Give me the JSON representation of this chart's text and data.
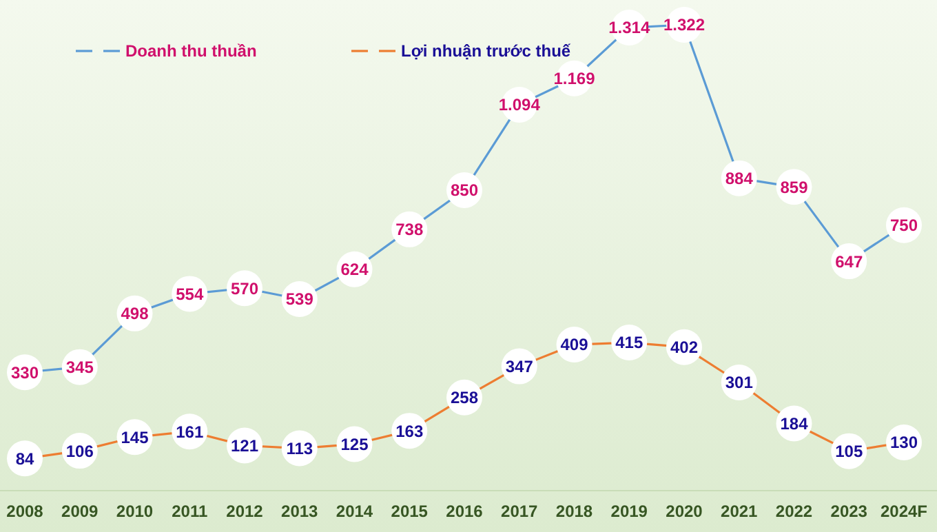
{
  "chart_data": {
    "type": "line",
    "categories": [
      "2008",
      "2009",
      "2010",
      "2011",
      "2012",
      "2013",
      "2014",
      "2015",
      "2016",
      "2017",
      "2018",
      "2019",
      "2020",
      "2021",
      "2022",
      "2023",
      "2024F"
    ],
    "series": [
      {
        "name": "Doanh thu thuần",
        "color": "#5b9bd5",
        "values": [
          330,
          345,
          498,
          554,
          570,
          539,
          624,
          738,
          850,
          1094,
          1169,
          1314,
          1322,
          884,
          859,
          647,
          750
        ],
        "value_labels": [
          "330",
          "345",
          "498",
          "554",
          "570",
          "539",
          "624",
          "738",
          "850",
          "1.094",
          "1.169",
          "1.314",
          "1.322",
          "884",
          "859",
          "647",
          "750"
        ]
      },
      {
        "name": "Lợi nhuận trước thuế",
        "color": "#ed7d31",
        "values": [
          84,
          106,
          145,
          161,
          121,
          113,
          125,
          163,
          258,
          347,
          409,
          415,
          402,
          301,
          184,
          105,
          130
        ],
        "value_labels": [
          "84",
          "106",
          "145",
          "161",
          "121",
          "113",
          "125",
          "163",
          "258",
          "347",
          "409",
          "415",
          "402",
          "301",
          "184",
          "105",
          "130"
        ]
      }
    ],
    "marker": "circle",
    "legend": "top left",
    "grid": false
  }
}
